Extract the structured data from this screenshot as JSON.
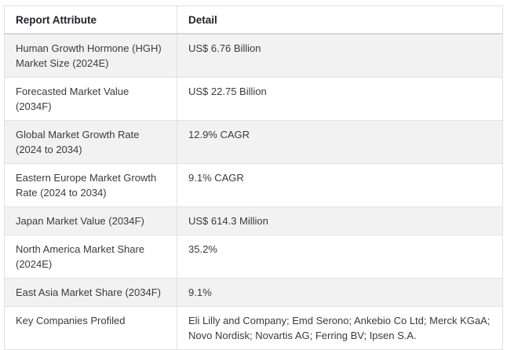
{
  "table": {
    "headers": [
      {
        "label": "Report Attribute"
      },
      {
        "label": "Detail"
      }
    ],
    "rows": [
      {
        "attribute": "Human Growth Hormone (HGH) Market Size (2024E)",
        "detail": "US$ 6.76 Billion"
      },
      {
        "attribute": "Forecasted Market Value (2034F)",
        "detail": "US$ 22.75 Billion"
      },
      {
        "attribute": "Global Market Growth Rate (2024 to 2034)",
        "detail": "12.9% CAGR"
      },
      {
        "attribute": "Eastern Europe Market Growth Rate (2024 to 2034)",
        "detail": "9.1% CAGR"
      },
      {
        "attribute": "Japan Market Value (2034F)",
        "detail": "US$ 614.3 Million"
      },
      {
        "attribute": "North America Market Share (2024E)",
        "detail": "35.2%"
      },
      {
        "attribute": "East Asia Market Share (2034F)",
        "detail": "9.1%"
      },
      {
        "attribute": "Key Companies Profiled",
        "detail": "Eli Lilly and Company; Emd Serono; Ankebio Co Ltd; Merck KGaA; Novo Nordisk; Novartis AG; Ferring BV; Ipsen S.A."
      }
    ],
    "colors": {
      "stripe": "#f2f2f2",
      "row_white": "#ffffff",
      "cell_border": "#dee2e6",
      "header_bottom_border": "#d5d5dd",
      "body_text": "#3b3b3b",
      "header_text": "#212529"
    }
  }
}
